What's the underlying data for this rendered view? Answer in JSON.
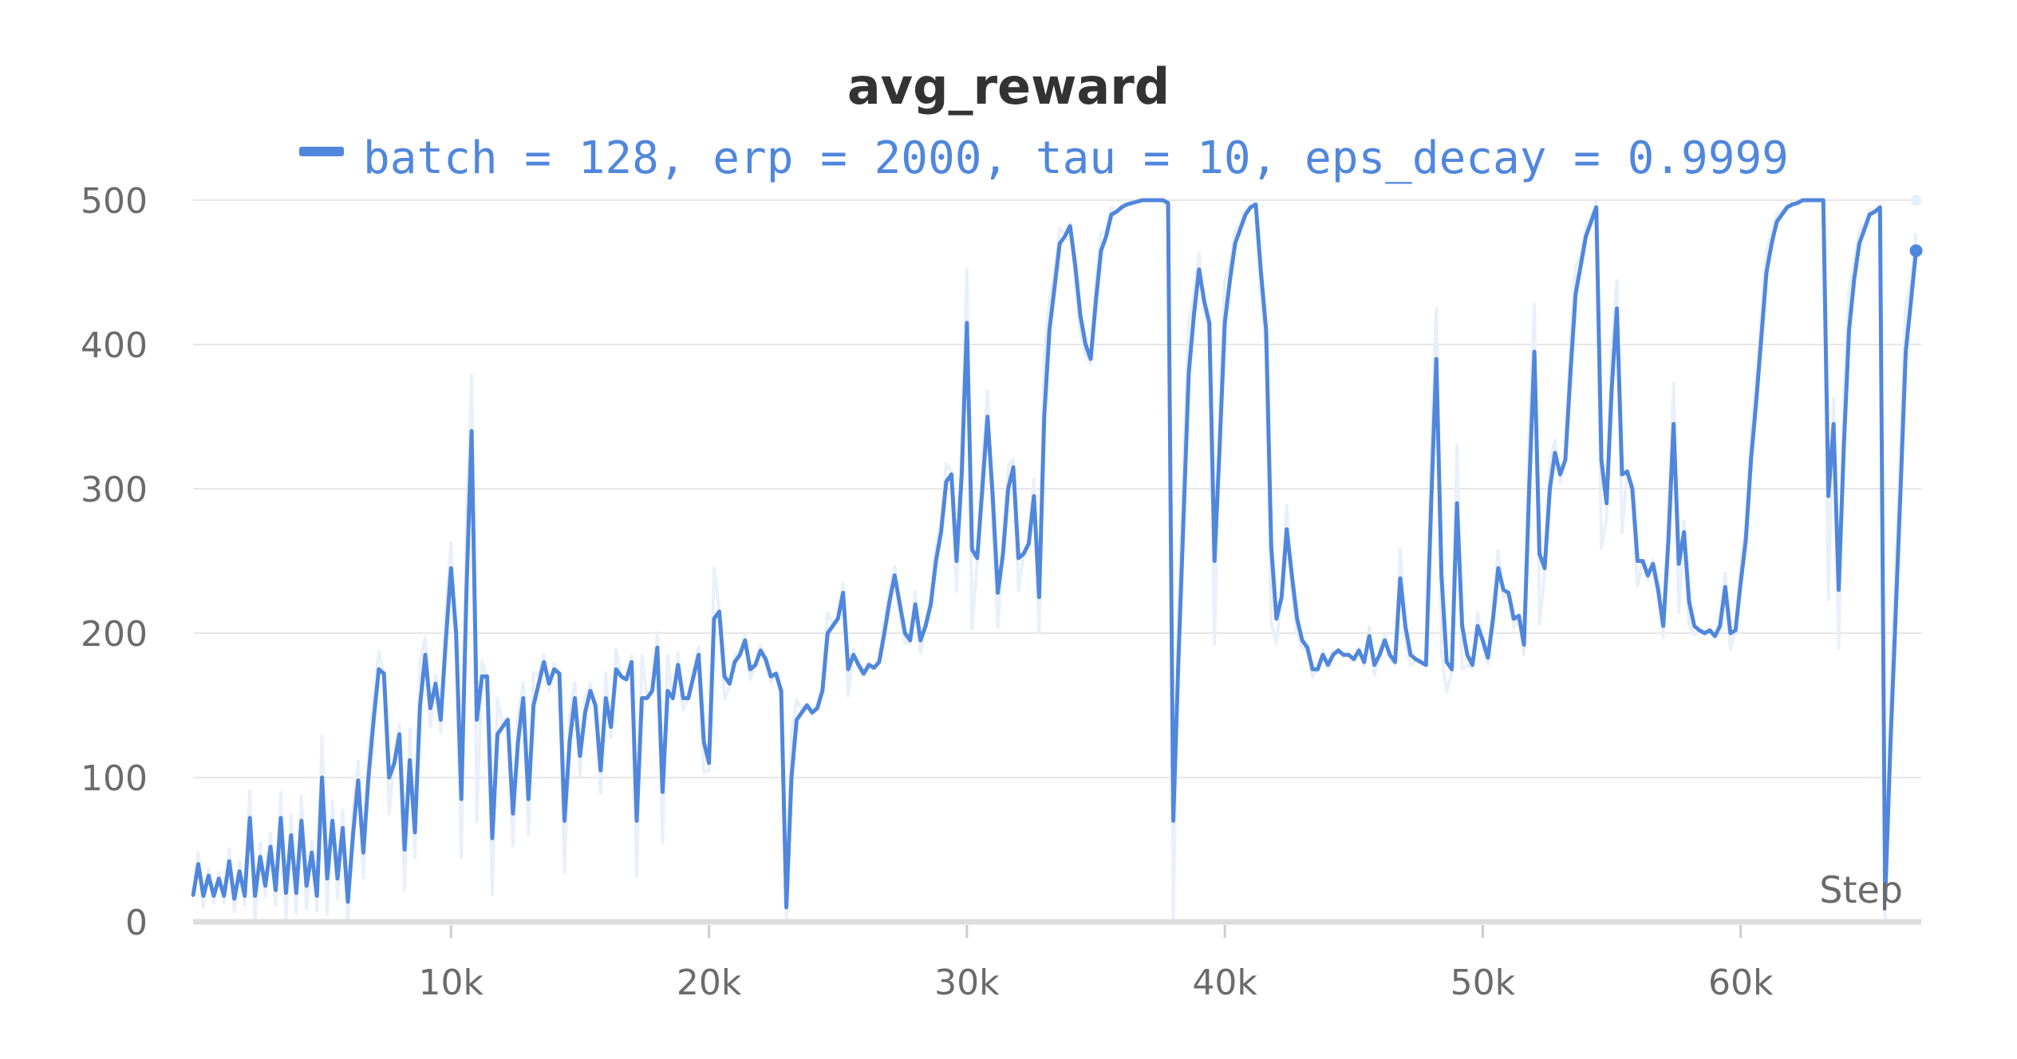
{
  "chart_data": {
    "type": "line",
    "title": "avg_reward",
    "xlabel": "Step",
    "ylabel": "",
    "xlim": [
      0,
      67000
    ],
    "ylim": [
      0,
      500
    ],
    "grid": true,
    "legend_position": "top-center",
    "x_ticks": [
      10000,
      20000,
      30000,
      40000,
      50000,
      60000
    ],
    "x_tick_labels": [
      "10k",
      "20k",
      "30k",
      "40k",
      "50k",
      "60k"
    ],
    "y_ticks": [
      0,
      100,
      200,
      300,
      400,
      500
    ],
    "y_tick_labels": [
      "0",
      "100",
      "200",
      "300",
      "400",
      "500"
    ],
    "colors": {
      "line": "#5087dd",
      "raw": "#e9f0fa",
      "title": "#333333",
      "tick": "#6b6b6b"
    },
    "series": [
      {
        "name": "batch = 128, erp = 2000, tau = 10, eps_decay = 0.9999",
        "x": [
          0,
          200,
          400,
          600,
          800,
          1000,
          1200,
          1400,
          1600,
          1800,
          2000,
          2200,
          2400,
          2600,
          2800,
          3000,
          3200,
          3400,
          3600,
          3800,
          4000,
          4200,
          4400,
          4600,
          4800,
          5000,
          5200,
          5400,
          5600,
          5800,
          6000,
          6200,
          6400,
          6600,
          6800,
          7000,
          7200,
          7400,
          7600,
          7800,
          8000,
          8200,
          8400,
          8600,
          8800,
          9000,
          9200,
          9400,
          9600,
          9800,
          10000,
          10200,
          10400,
          10600,
          10800,
          11000,
          11200,
          11400,
          11600,
          11800,
          12000,
          12200,
          12400,
          12600,
          12800,
          13000,
          13200,
          13400,
          13600,
          13800,
          14000,
          14200,
          14400,
          14600,
          14800,
          15000,
          15200,
          15400,
          15600,
          15800,
          16000,
          16200,
          16400,
          16600,
          16800,
          17000,
          17200,
          17400,
          17600,
          17800,
          18000,
          18200,
          18400,
          18600,
          18800,
          19000,
          19200,
          19400,
          19600,
          19800,
          20000,
          20200,
          20400,
          20600,
          20800,
          21000,
          21200,
          21400,
          21600,
          21800,
          22000,
          22200,
          22400,
          22600,
          22800,
          23000,
          23200,
          23400,
          23600,
          23800,
          24000,
          24200,
          24400,
          24600,
          24800,
          25000,
          25200,
          25400,
          25600,
          25800,
          26000,
          26200,
          26400,
          26600,
          26800,
          27000,
          27200,
          27400,
          27600,
          27800,
          28000,
          28200,
          28400,
          28600,
          28800,
          29000,
          29200,
          29400,
          29600,
          29800,
          30000,
          30200,
          30400,
          30600,
          30800,
          31000,
          31200,
          31400,
          31600,
          31800,
          32000,
          32200,
          32400,
          32600,
          32800,
          33000,
          33200,
          33400,
          33600,
          33800,
          34000,
          34200,
          34400,
          34600,
          34800,
          35000,
          35200,
          35400,
          35600,
          35800,
          36000,
          36200,
          36400,
          36600,
          36800,
          37000,
          37200,
          37400,
          37600,
          37800,
          38000,
          38200,
          38400,
          38600,
          38800,
          39000,
          39200,
          39400,
          39600,
          39800,
          40000,
          40200,
          40400,
          40600,
          40800,
          41000,
          41200,
          41400,
          41600,
          41800,
          42000,
          42200,
          42400,
          42600,
          42800,
          43000,
          43200,
          43400,
          43600,
          43800,
          44000,
          44200,
          44400,
          44600,
          44800,
          45000,
          45200,
          45400,
          45600,
          45800,
          46000,
          46200,
          46400,
          46600,
          46800,
          47000,
          47200,
          47400,
          47600,
          47800,
          48000,
          48200,
          48400,
          48600,
          48800,
          49000,
          49200,
          49400,
          49600,
          49800,
          50000,
          50200,
          50400,
          50600,
          50800,
          51000,
          51200,
          51400,
          51600,
          51800,
          52000,
          52200,
          52400,
          52600,
          52800,
          53000,
          53200,
          53400,
          53600,
          53800,
          54000,
          54200,
          54400,
          54600,
          54800,
          55000,
          55200,
          55400,
          55600,
          55800,
          56000,
          56200,
          56400,
          56600,
          56800,
          57000,
          57200,
          57400,
          57600,
          57800,
          58000,
          58200,
          58400,
          58600,
          58800,
          59000,
          59200,
          59400,
          59600,
          59800,
          60000,
          60200,
          60400,
          60600,
          60800,
          61000,
          61200,
          61400,
          61600,
          61800,
          62000,
          62200,
          62400,
          62600,
          62800,
          63000,
          63200,
          63400,
          63600,
          63800,
          64000,
          64200,
          64400,
          64600,
          64800,
          65000,
          65200,
          65400,
          65600,
          65800,
          66000,
          66200,
          66400,
          66600,
          66800
        ],
        "y": [
          18,
          40,
          18,
          32,
          18,
          30,
          18,
          42,
          16,
          35,
          18,
          72,
          18,
          45,
          25,
          52,
          22,
          72,
          20,
          60,
          20,
          70,
          25,
          48,
          18,
          100,
          30,
          70,
          30,
          65,
          14,
          60,
          98,
          48,
          100,
          140,
          175,
          172,
          100,
          110,
          130,
          50,
          112,
          62,
          150,
          185,
          148,
          165,
          140,
          195,
          245,
          200,
          85,
          230,
          340,
          140,
          170,
          170,
          58,
          130,
          135,
          140,
          75,
          125,
          155,
          85,
          150,
          165,
          180,
          165,
          175,
          172,
          70,
          125,
          155,
          115,
          145,
          160,
          150,
          105,
          155,
          135,
          175,
          170,
          168,
          180,
          70,
          155,
          155,
          160,
          190,
          90,
          160,
          155,
          178,
          155,
          155,
          170,
          185,
          125,
          110,
          210,
          215,
          170,
          165,
          180,
          185,
          195,
          175,
          178,
          188,
          182,
          170,
          172,
          160,
          10,
          100,
          140,
          145,
          150,
          145,
          148,
          160,
          200,
          205,
          210,
          228,
          175,
          185,
          178,
          172,
          178,
          176,
          180,
          200,
          222,
          240,
          220,
          200,
          195,
          220,
          195,
          205,
          220,
          250,
          270,
          305,
          310,
          250,
          310,
          415,
          258,
          252,
          300,
          350,
          295,
          228,
          255,
          300,
          315,
          252,
          255,
          262,
          295,
          225,
          350,
          410,
          440,
          470,
          475,
          482,
          455,
          420,
          400,
          390,
          430,
          465,
          475,
          490,
          492,
          495,
          497,
          498,
          499,
          500,
          500,
          500,
          500,
          500,
          498,
          70,
          180,
          280,
          380,
          420,
          452,
          430,
          415,
          250,
          330,
          415,
          445,
          470,
          480,
          490,
          495,
          497,
          450,
          410,
          260,
          210,
          225,
          272,
          240,
          210,
          195,
          190,
          175,
          175,
          185,
          178,
          185,
          188,
          185,
          185,
          182,
          188,
          180,
          198,
          178,
          185,
          195,
          185,
          180,
          238,
          205,
          185,
          182,
          180,
          178,
          290,
          390,
          240,
          180,
          175,
          290,
          205,
          185,
          178,
          205,
          195,
          183,
          210,
          245,
          230,
          228,
          210,
          212,
          192,
          300,
          395,
          255,
          245,
          300,
          325,
          310,
          320,
          380,
          435,
          455,
          475,
          485,
          495,
          320,
          290,
          370,
          425,
          310,
          312,
          300,
          250,
          250,
          240,
          248,
          230,
          205,
          265,
          345,
          248,
          270,
          222,
          205,
          202,
          200,
          202,
          198,
          205,
          232,
          200,
          202,
          235,
          265,
          320,
          360,
          405,
          450,
          470,
          485,
          490,
          495,
          497,
          498,
          500,
          500,
          500,
          500,
          500,
          295,
          345,
          230,
          330,
          410,
          445,
          470,
          480,
          490,
          492,
          495,
          15,
          120,
          210,
          300,
          395,
          430,
          465
        ]
      }
    ]
  }
}
